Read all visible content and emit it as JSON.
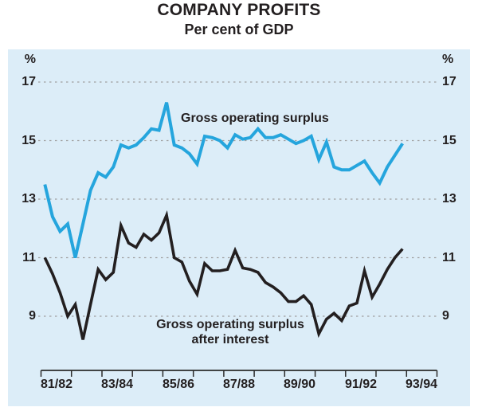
{
  "title": "COMPANY PROFITS",
  "subtitle": "Per cent of GDP",
  "annotations": {
    "series1_label": "Gross operating surplus",
    "series2_label_line1": "Gross operating surplus",
    "series2_label_line2": "after interest"
  },
  "colors": {
    "plot_background": "#dcedf8",
    "series1": "#25a5dd",
    "series2": "#231f20",
    "text": "#231f20",
    "gridline": "#a0a0a0",
    "axis": "#2b2b2b"
  },
  "chart_data": {
    "type": "line",
    "title": "COMPANY PROFITS",
    "subtitle": "Per cent of GDP",
    "unit_left": "%",
    "unit_right": "%",
    "yticks": [
      17,
      15,
      13,
      11,
      9
    ],
    "ylim": [
      9,
      17
    ],
    "grid": "dashed horizontal, labels both sides",
    "x_tick_labels": [
      "81/82",
      "83/84",
      "85/86",
      "87/88",
      "89/90",
      "91/92",
      "93/94"
    ],
    "points_per_year": 4,
    "x_span_years": 13,
    "legend_position": "inline annotations",
    "series": [
      {
        "name": "Gross operating surplus",
        "color": "#25a5dd",
        "values": [
          13.5,
          12.4,
          11.9,
          12.15,
          11.0,
          12.15,
          13.3,
          13.9,
          13.75,
          14.1,
          14.85,
          14.75,
          14.85,
          15.1,
          15.4,
          15.35,
          16.3,
          14.85,
          14.75,
          14.55,
          14.2,
          15.15,
          15.1,
          15.0,
          14.75,
          15.2,
          15.05,
          15.1,
          15.4,
          15.1,
          15.1,
          15.2,
          15.05,
          14.9,
          15.0,
          15.15,
          14.35,
          14.95,
          14.1,
          14.0,
          14.0,
          14.15,
          14.3,
          13.9,
          13.55,
          14.1,
          14.5,
          14.9
        ]
      },
      {
        "name": "Gross operating surplus after interest",
        "color": "#231f20",
        "values": [
          11.0,
          10.45,
          9.8,
          9.0,
          9.4,
          8.2,
          9.4,
          10.6,
          10.25,
          10.5,
          12.1,
          11.5,
          11.35,
          11.8,
          11.6,
          11.85,
          12.45,
          11.0,
          10.85,
          10.2,
          9.75,
          10.8,
          10.55,
          10.55,
          10.6,
          11.25,
          10.65,
          10.6,
          10.5,
          10.15,
          10.0,
          9.8,
          9.5,
          9.5,
          9.7,
          9.4,
          8.4,
          8.9,
          9.1,
          8.85,
          9.35,
          9.45,
          10.55,
          9.65,
          10.1,
          10.6,
          11.0,
          11.3
        ]
      }
    ]
  }
}
